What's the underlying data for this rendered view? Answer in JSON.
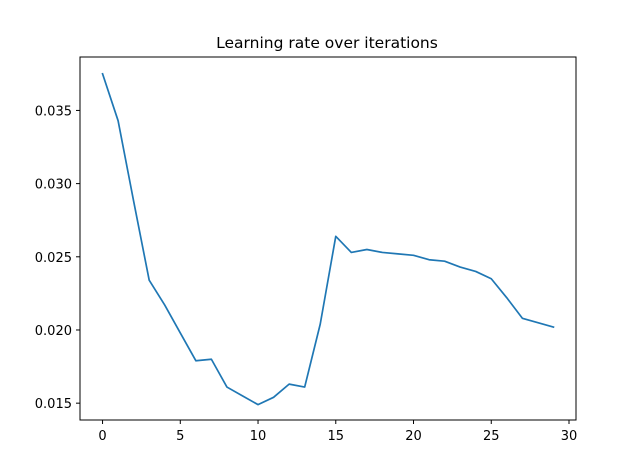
{
  "chart_data": {
    "type": "line",
    "title": "Learning rate over iterations",
    "xlabel": "",
    "ylabel": "",
    "xlim": [
      -1.45,
      30.45
    ],
    "ylim": [
      0.01385,
      0.03865
    ],
    "xticks": [
      0,
      5,
      10,
      15,
      20,
      25,
      30
    ],
    "xtick_labels": [
      "0",
      "5",
      "10",
      "15",
      "20",
      "25",
      "30"
    ],
    "yticks": [
      0.015,
      0.02,
      0.025,
      0.03,
      0.035
    ],
    "ytick_labels": [
      "0.015",
      "0.020",
      "0.025",
      "0.030",
      "0.035"
    ],
    "grid": false,
    "legend": "none",
    "series": [
      {
        "color": "#1f77b4",
        "x": [
          0,
          1,
          2,
          3,
          4,
          5,
          6,
          7,
          8,
          9,
          10,
          11,
          12,
          13,
          14,
          15,
          16,
          17,
          18,
          19,
          20,
          21,
          22,
          23,
          24,
          25,
          26,
          27,
          28,
          29
        ],
        "values": [
          0.0375,
          0.0343,
          0.0288,
          0.0234,
          0.0217,
          0.0198,
          0.0179,
          0.018,
          0.0161,
          0.0155,
          0.0149,
          0.0154,
          0.0163,
          0.0161,
          0.0204,
          0.0264,
          0.0253,
          0.0255,
          0.0253,
          0.0252,
          0.0251,
          0.0248,
          0.0247,
          0.0243,
          0.024,
          0.0235,
          0.0222,
          0.0208,
          0.0205,
          0.0202
        ]
      }
    ]
  }
}
